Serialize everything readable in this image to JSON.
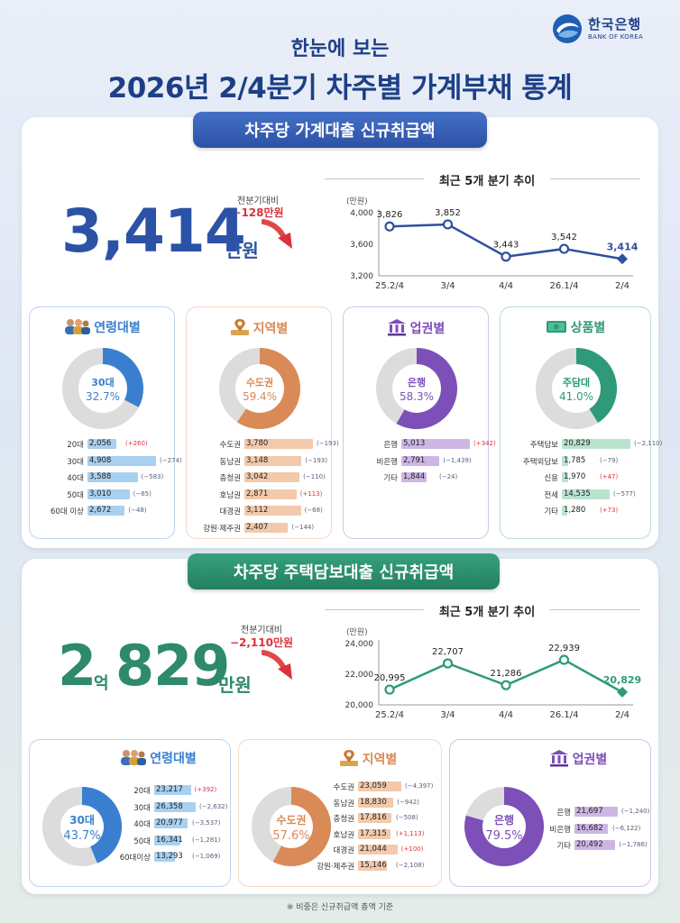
{
  "logo": {
    "kr": "한국은행",
    "en": "BANK OF KOREA"
  },
  "header": {
    "subtitle": "한눈에 보는",
    "title": "2026년 2/4분기 차주별 가계부채 통계"
  },
  "section1": {
    "pill": "차주당 가계대출 신규취급액",
    "delta_label": "전분기대비",
    "delta_value": "−128만원",
    "big_number": "3,414",
    "big_unit": "만원",
    "colors": {
      "accent": "#2c52a6"
    },
    "trend_title": "최근 5개 분기 추이",
    "chart_data": {
      "type": "line",
      "ylabel": "(만원)",
      "x": [
        "25.2/4",
        "3/4",
        "4/4",
        "26.1/4",
        "2/4"
      ],
      "values": [
        3826,
        3852,
        3443,
        3542,
        3414
      ],
      "data_labels": [
        "3,826",
        "3,852",
        "3,443",
        "3,542",
        "3,414"
      ],
      "yticks": [
        "4,000",
        "3,600",
        "3,200"
      ],
      "ytick_values": [
        4000,
        3600,
        3200
      ],
      "ylim": [
        3200,
        4000
      ],
      "color": "#2f4fa0"
    },
    "categories": [
      {
        "title": "연령대별",
        "icon": "people-icon",
        "color": "#3a7fcf",
        "bar_color": "#a9d0ef",
        "donut": {
          "label": "30대",
          "value": "32.7%",
          "fraction": 0.327
        },
        "rows": [
          {
            "label": "20대",
            "value": "2,056",
            "change": "(+260)",
            "pos": true,
            "num": 2056
          },
          {
            "label": "30대",
            "value": "4,908",
            "change": "(−274)",
            "pos": false,
            "num": 4908
          },
          {
            "label": "40대",
            "value": "3,588",
            "change": "(−583)",
            "pos": false,
            "num": 3588
          },
          {
            "label": "50대",
            "value": "3,010",
            "change": "(−65)",
            "pos": false,
            "num": 3010
          },
          {
            "label": "60대 이상",
            "value": "2,672",
            "change": "(−48)",
            "pos": false,
            "num": 2672
          }
        ]
      },
      {
        "title": "지역별",
        "icon": "map-pin-icon",
        "color": "#d98a57",
        "bar_color": "#f2c9ab",
        "donut": {
          "label": "수도권",
          "value": "59.4%",
          "fraction": 0.594
        },
        "rows": [
          {
            "label": "수도권",
            "value": "3,780",
            "change": "(−193)",
            "pos": false,
            "num": 3780
          },
          {
            "label": "동남권",
            "value": "3,148",
            "change": "(−193)",
            "pos": false,
            "num": 3148
          },
          {
            "label": "충청권",
            "value": "3,042",
            "change": "(−110)",
            "pos": false,
            "num": 3042
          },
          {
            "label": "호남권",
            "value": "2,871",
            "change": "(+113)",
            "pos": true,
            "num": 2871
          },
          {
            "label": "대경권",
            "value": "3,112",
            "change": "(−68)",
            "pos": false,
            "num": 3112
          },
          {
            "label": "강원·제주권",
            "value": "2,407",
            "change": "(−144)",
            "pos": false,
            "num": 2407
          }
        ]
      },
      {
        "title": "업권별",
        "icon": "bank-icon",
        "color": "#7d4fb8",
        "bar_color": "#cdb6e6",
        "donut": {
          "label": "은행",
          "value": "58.3%",
          "fraction": 0.583
        },
        "rows": [
          {
            "label": "은행",
            "value": "5,013",
            "change": "(+342)",
            "pos": true,
            "num": 5013
          },
          {
            "label": "비은행",
            "value": "2,791",
            "change": "(−1,439)",
            "pos": false,
            "num": 2791
          },
          {
            "label": "기타",
            "value": "1,844",
            "change": "(−24)",
            "pos": false,
            "num": 1844
          }
        ]
      },
      {
        "title": "상품별",
        "icon": "money-icon",
        "color": "#2e9a7a",
        "bar_color": "#b9e3cf",
        "donut": {
          "label": "주담대",
          "value": "41.0%",
          "fraction": 0.41
        },
        "rows": [
          {
            "label": "주택담보",
            "value": "20,829",
            "change": "(−2,110)",
            "pos": false,
            "num": 20829
          },
          {
            "label": "주택외담보",
            "value": "1,785",
            "change": "(−79)",
            "pos": false,
            "num": 1785
          },
          {
            "label": "신용",
            "value": "1,970",
            "change": "(+47)",
            "pos": true,
            "num": 1970
          },
          {
            "label": "전세",
            "value": "14,535",
            "change": "(−577)",
            "pos": false,
            "num": 14535
          },
          {
            "label": "기타",
            "value": "1,280",
            "change": "(+73)",
            "pos": true,
            "num": 1280
          }
        ]
      }
    ]
  },
  "section2": {
    "pill": "차주당 주택담보대출 신규취급액",
    "delta_label": "전분기대비",
    "delta_value": "−2,110만원",
    "big_number_a": "2",
    "big_number_unit_a": "억",
    "big_number": "829",
    "big_unit": "만원",
    "colors": {
      "accent": "#2e8a6a"
    },
    "trend_title": "최근 5개 분기 추이",
    "chart_data": {
      "type": "line",
      "ylabel": "(만원)",
      "x": [
        "25.2/4",
        "3/4",
        "4/4",
        "26.1/4",
        "2/4"
      ],
      "values": [
        20995,
        22707,
        21286,
        22939,
        20829
      ],
      "data_labels": [
        "20,995",
        "22,707",
        "21,286",
        "22,939",
        "20,829"
      ],
      "yticks": [
        "24,000",
        "22,000",
        "20,000"
      ],
      "ytick_values": [
        24000,
        22000,
        20000
      ],
      "ylim": [
        20000,
        24000
      ],
      "color": "#2e9a7a"
    },
    "categories": [
      {
        "title": "연령대별",
        "icon": "people-icon",
        "color": "#3a7fcf",
        "bar_color": "#a9d0ef",
        "donut": {
          "label": "30대",
          "value": "43.7%",
          "fraction": 0.437
        },
        "rows": [
          {
            "label": "20대",
            "value": "23,217",
            "change": "(+392)",
            "pos": true,
            "num": 23217
          },
          {
            "label": "30대",
            "value": "26,358",
            "change": "(−2,632)",
            "pos": false,
            "num": 26358
          },
          {
            "label": "40대",
            "value": "20,977",
            "change": "(−3,537)",
            "pos": false,
            "num": 20977
          },
          {
            "label": "50대",
            "value": "16,341",
            "change": "(−1,281)",
            "pos": false,
            "num": 16341
          },
          {
            "label": "60대이상",
            "value": "13,293",
            "change": "(−1,069)",
            "pos": false,
            "num": 13293
          }
        ]
      },
      {
        "title": "지역별",
        "icon": "map-pin-icon",
        "color": "#d98a57",
        "bar_color": "#f2c9ab",
        "donut": {
          "label": "수도권",
          "value": "57.6%",
          "fraction": 0.576
        },
        "rows": [
          {
            "label": "수도권",
            "value": "23,059",
            "change": "(−4,397)",
            "pos": false,
            "num": 23059
          },
          {
            "label": "동남권",
            "value": "18,830",
            "change": "(−942)",
            "pos": false,
            "num": 18830
          },
          {
            "label": "충청권",
            "value": "17,816",
            "change": "(−508)",
            "pos": false,
            "num": 17816
          },
          {
            "label": "호남권",
            "value": "17,315",
            "change": "(+1,113)",
            "pos": true,
            "num": 17315
          },
          {
            "label": "대경권",
            "value": "21,044",
            "change": "(+100)",
            "pos": true,
            "num": 21044
          },
          {
            "label": "강원·제주권",
            "value": "15,146",
            "change": "(−2,108)",
            "pos": false,
            "num": 15146
          }
        ]
      },
      {
        "title": "업권별",
        "icon": "bank-icon",
        "color": "#7d4fb8",
        "bar_color": "#cdb6e6",
        "donut": {
          "label": "은행",
          "value": "79.5%",
          "fraction": 0.795
        },
        "rows": [
          {
            "label": "은행",
            "value": "21,697",
            "change": "(−1,240)",
            "pos": false,
            "num": 21697
          },
          {
            "label": "비은행",
            "value": "16,682",
            "change": "(−6,122)",
            "pos": false,
            "num": 16682
          },
          {
            "label": "기타",
            "value": "20,492",
            "change": "(−1,786)",
            "pos": false,
            "num": 20492
          }
        ]
      }
    ]
  },
  "footnote": "※ 비중은 신규취급액 총액 기준"
}
